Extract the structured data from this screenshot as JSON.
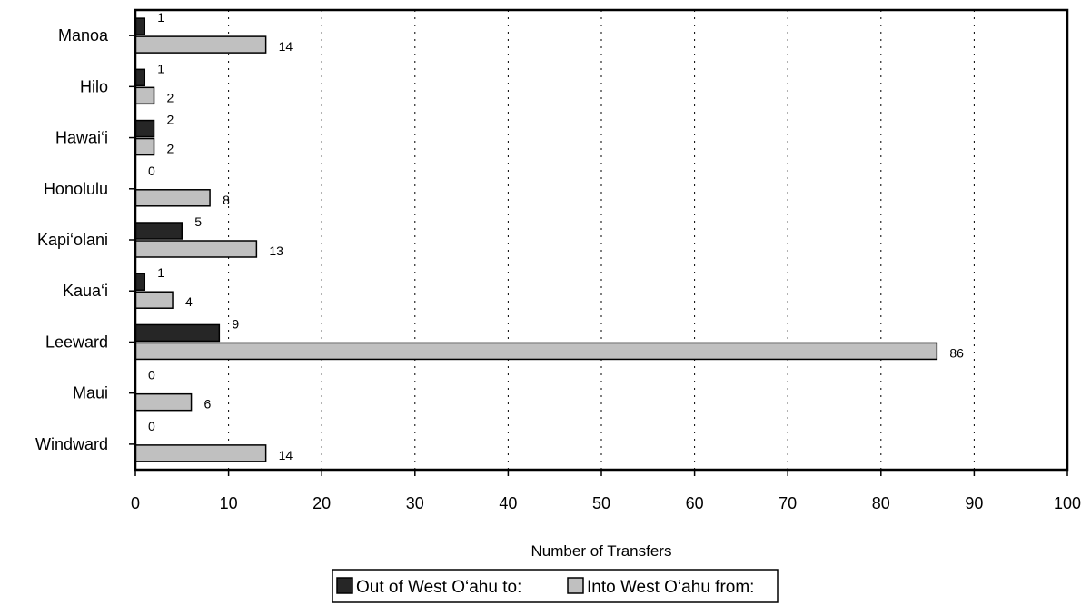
{
  "chart_data": {
    "type": "bar",
    "orientation": "horizontal",
    "categories": [
      "Manoa",
      "Hilo",
      "Hawai‘i",
      "Honolulu",
      "Kapi‘olani",
      "Kaua‘i",
      "Leeward",
      "Maui",
      "Windward"
    ],
    "series": [
      {
        "name": "Out of West O‘ahu to:",
        "values": [
          1,
          1,
          2,
          0,
          5,
          1,
          9,
          0,
          0
        ],
        "color": "#262626"
      },
      {
        "name": "Into West O‘ahu from:",
        "values": [
          14,
          2,
          2,
          8,
          13,
          4,
          86,
          6,
          14
        ],
        "color": "#c0c0c0"
      }
    ],
    "xlabel": "Number of Transfers",
    "ylabel": "",
    "xlim": [
      0,
      100
    ],
    "xticks": [
      0,
      10,
      20,
      30,
      40,
      50,
      60,
      70,
      80,
      90,
      100
    ],
    "grid": "vertical dotted",
    "legend_position": "bottom"
  }
}
